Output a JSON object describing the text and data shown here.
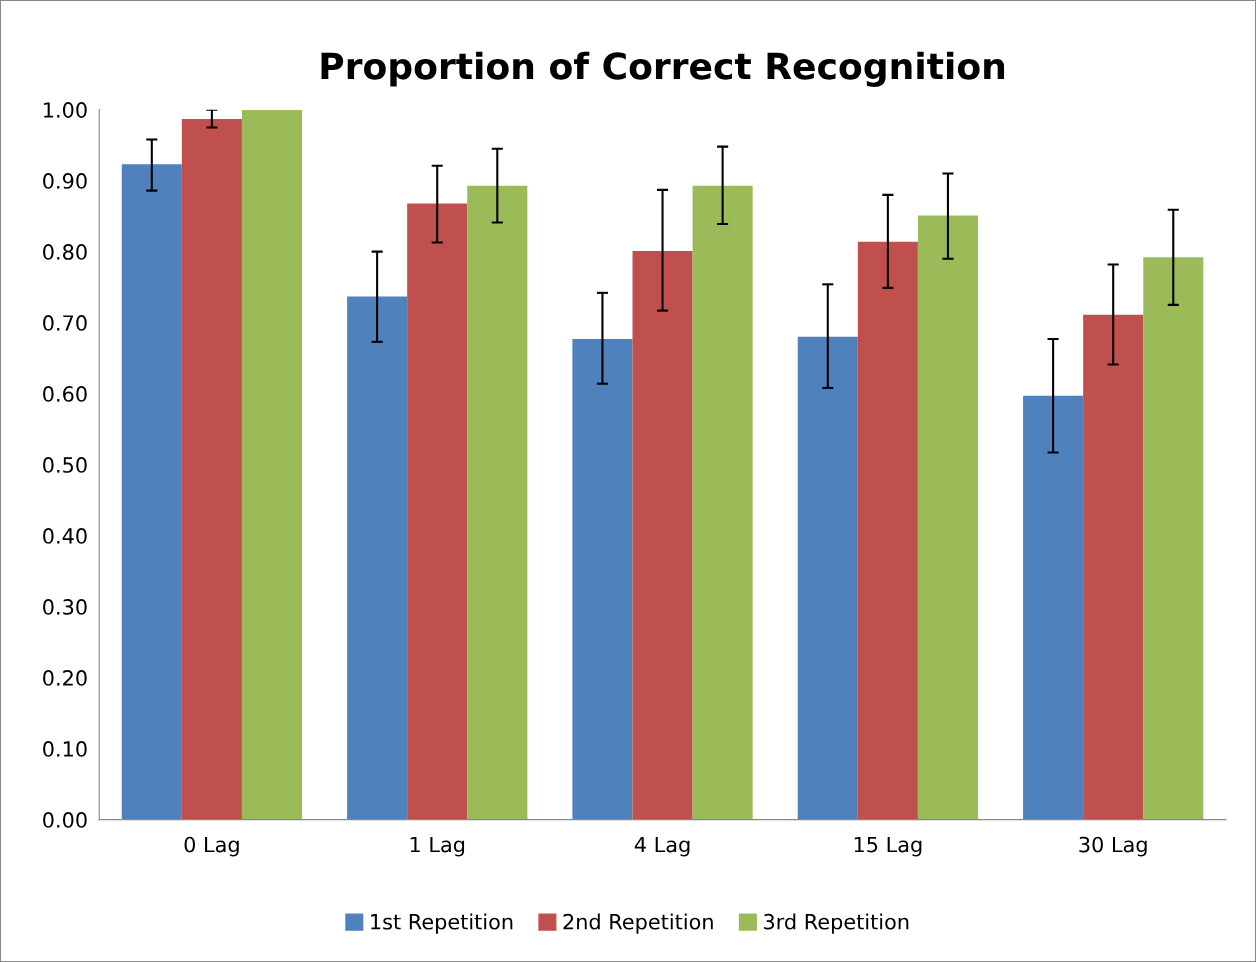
{
  "chart_data": {
    "type": "bar",
    "title": "Proportion of Correct Recognition",
    "categories": [
      "0 Lag",
      "1 Lag",
      "4 Lag",
      "15 Lag",
      "30 Lag"
    ],
    "series": [
      {
        "name": "1st Repetition",
        "color": "#4f81bd",
        "values": [
          0.923,
          0.737,
          0.677,
          0.68,
          0.597
        ],
        "errors": [
          [
            0.886,
            0.958
          ],
          [
            0.673,
            0.8
          ],
          [
            0.614,
            0.742
          ],
          [
            0.608,
            0.754
          ],
          [
            0.517,
            0.677
          ]
        ]
      },
      {
        "name": "2nd Repetition",
        "color": "#c0504d",
        "values": [
          0.987,
          0.868,
          0.801,
          0.814,
          0.711
        ],
        "errors": [
          [
            0.975,
            1.0
          ],
          [
            0.813,
            0.921
          ],
          [
            0.717,
            0.887
          ],
          [
            0.749,
            0.88
          ],
          [
            0.641,
            0.782
          ]
        ]
      },
      {
        "name": "3rd Repetition",
        "color": "#9bbb59",
        "values": [
          1.0,
          0.893,
          0.893,
          0.851,
          0.792
        ],
        "errors": [
          null,
          [
            0.841,
            0.945
          ],
          [
            0.839,
            0.948
          ],
          [
            0.79,
            0.91
          ],
          [
            0.725,
            0.859
          ]
        ]
      }
    ],
    "ylim": [
      0,
      1.0
    ],
    "yticks": [
      {
        "value": 0,
        "label": "0.00"
      },
      {
        "value": 0.1,
        "label": "0.10"
      },
      {
        "value": 0.2,
        "label": "0.20"
      },
      {
        "value": 0.3,
        "label": "0.30"
      },
      {
        "value": 0.4,
        "label": "0.40"
      },
      {
        "value": 0.5,
        "label": "0.50"
      },
      {
        "value": 0.6,
        "label": "0.60"
      },
      {
        "value": 0.7,
        "label": "0.70"
      },
      {
        "value": 0.8,
        "label": "0.80"
      },
      {
        "value": 0.9,
        "label": "0.90"
      },
      {
        "value": 1.0,
        "label": "1.00"
      }
    ],
    "grid": false,
    "legend": "bottom"
  }
}
